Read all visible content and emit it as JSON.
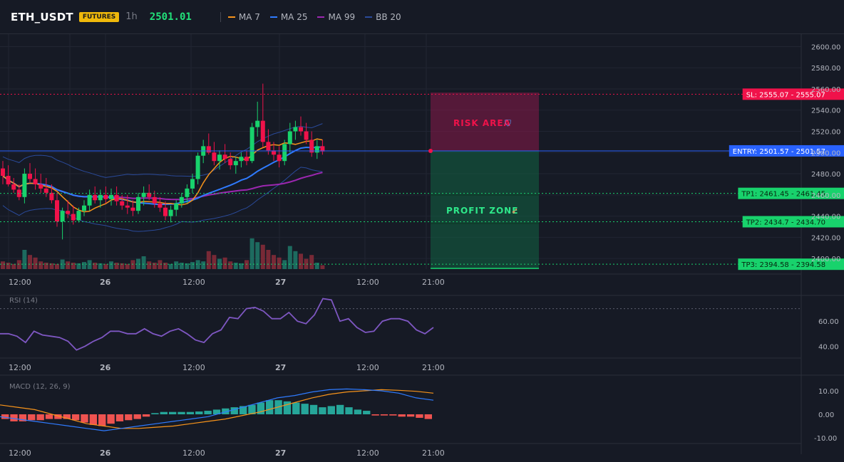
{
  "header": {
    "symbol": "ETH_USDT",
    "badge": "FUTURES",
    "timeframe": "1h",
    "last_price": "2501.01",
    "indicators": [
      {
        "label": "MA 7",
        "color": "#f7931a"
      },
      {
        "label": "MA 25",
        "color": "#2f7bff"
      },
      {
        "label": "MA 99",
        "color": "#9c27b0"
      },
      {
        "label": "BB 20",
        "color": "#2a4a9a"
      }
    ]
  },
  "main_panel": {
    "price_ticks": [
      "2600.00",
      "2580.00",
      "2560.00",
      "2540.00",
      "2520.00",
      "2500.00",
      "2480.00",
      "2460.00",
      "2440.00",
      "2420.00",
      "2400.00"
    ],
    "time_ticks": [
      "12:00",
      "26",
      "12:00",
      "27",
      "12:00",
      "21:00"
    ],
    "zones": {
      "risk_label": "RISK AREA",
      "profit_label": "PROFIT ZONE"
    },
    "levels": [
      {
        "label": "SL: 2555.07",
        "price": "2555.07",
        "color": "#f0124a"
      },
      {
        "label": "ENTRY: 2501.57",
        "price": "2501.57",
        "color": "#2962ff"
      },
      {
        "label": "TP1: 2461.45",
        "price": "2461.45",
        "color": "#18d26c"
      },
      {
        "label": "TP2: 2434.7",
        "price": "2434.70",
        "color": "#18d26c"
      },
      {
        "label": "TP3: 2394.58",
        "price": "2394.58",
        "color": "#18d26c"
      }
    ]
  },
  "rsi_panel": {
    "title": "RSI (14)",
    "ticks": [
      "60.00",
      "40.00"
    ],
    "time_ticks": [
      "12:00",
      "26",
      "12:00",
      "27",
      "12:00",
      "21:00"
    ]
  },
  "macd_panel": {
    "title": "MACD (12, 26, 9)",
    "ticks": [
      "10.00",
      "0.00",
      "-10.00"
    ],
    "time_ticks": [
      "12:00",
      "26",
      "12:00",
      "27",
      "12:00",
      "21:00"
    ]
  },
  "chart_data": {
    "type": "candlestick",
    "y_range": [
      2390,
      2605
    ],
    "candles": [
      [
        2485,
        2492,
        2470,
        2478
      ],
      [
        2478,
        2488,
        2468,
        2470
      ],
      [
        2470,
        2476,
        2462,
        2465
      ],
      [
        2465,
        2470,
        2455,
        2458
      ],
      [
        2458,
        2485,
        2452,
        2480
      ],
      [
        2480,
        2490,
        2472,
        2475
      ],
      [
        2475,
        2485,
        2465,
        2470
      ],
      [
        2470,
        2480,
        2462,
        2466
      ],
      [
        2466,
        2476,
        2458,
        2462
      ],
      [
        2462,
        2470,
        2452,
        2455
      ],
      [
        2455,
        2462,
        2430,
        2435
      ],
      [
        2435,
        2448,
        2418,
        2445
      ],
      [
        2445,
        2455,
        2438,
        2442
      ],
      [
        2442,
        2450,
        2432,
        2436
      ],
      [
        2436,
        2448,
        2434,
        2445
      ],
      [
        2445,
        2455,
        2440,
        2450
      ],
      [
        2450,
        2465,
        2445,
        2460
      ],
      [
        2460,
        2468,
        2452,
        2455
      ],
      [
        2455,
        2465,
        2448,
        2460
      ],
      [
        2460,
        2468,
        2452,
        2456
      ],
      [
        2456,
        2466,
        2450,
        2460
      ],
      [
        2460,
        2468,
        2450,
        2454
      ],
      [
        2454,
        2460,
        2446,
        2450
      ],
      [
        2450,
        2460,
        2442,
        2448
      ],
      [
        2448,
        2455,
        2440,
        2445
      ],
      [
        2445,
        2462,
        2442,
        2458
      ],
      [
        2458,
        2468,
        2450,
        2462
      ],
      [
        2462,
        2470,
        2455,
        2458
      ],
      [
        2458,
        2464,
        2448,
        2452
      ],
      [
        2452,
        2458,
        2444,
        2448
      ],
      [
        2448,
        2454,
        2436,
        2440
      ],
      [
        2440,
        2450,
        2434,
        2446
      ],
      [
        2446,
        2455,
        2440,
        2452
      ],
      [
        2452,
        2462,
        2448,
        2458
      ],
      [
        2458,
        2470,
        2452,
        2466
      ],
      [
        2466,
        2480,
        2462,
        2475
      ],
      [
        2475,
        2500,
        2470,
        2497
      ],
      [
        2497,
        2512,
        2490,
        2506
      ],
      [
        2506,
        2518,
        2498,
        2500
      ],
      [
        2500,
        2510,
        2488,
        2492
      ],
      [
        2492,
        2502,
        2484,
        2498
      ],
      [
        2498,
        2508,
        2490,
        2494
      ],
      [
        2494,
        2500,
        2484,
        2488
      ],
      [
        2488,
        2496,
        2480,
        2492
      ],
      [
        2492,
        2500,
        2486,
        2496
      ],
      [
        2496,
        2502,
        2488,
        2492
      ],
      [
        2492,
        2528,
        2490,
        2524
      ],
      [
        2524,
        2548,
        2515,
        2530
      ],
      [
        2530,
        2565,
        2505,
        2510
      ],
      [
        2510,
        2522,
        2498,
        2502
      ],
      [
        2502,
        2510,
        2492,
        2498
      ],
      [
        2498,
        2506,
        2486,
        2492
      ],
      [
        2492,
        2512,
        2488,
        2508
      ],
      [
        2508,
        2528,
        2500,
        2520
      ],
      [
        2520,
        2530,
        2512,
        2524
      ],
      [
        2524,
        2534,
        2516,
        2520
      ],
      [
        2520,
        2528,
        2508,
        2512
      ],
      [
        2512,
        2520,
        2496,
        2500
      ],
      [
        2500,
        2512,
        2494,
        2506
      ],
      [
        2506,
        2512,
        2498,
        2501
      ]
    ],
    "volumes": [
      12,
      10,
      8,
      14,
      30,
      22,
      18,
      12,
      10,
      9,
      8,
      15,
      12,
      10,
      9,
      11,
      14,
      10,
      9,
      8,
      12,
      10,
      9,
      8,
      14,
      16,
      20,
      12,
      10,
      14,
      10,
      8,
      12,
      10,
      9,
      11,
      14,
      12,
      28,
      22,
      16,
      18,
      12,
      10,
      9,
      14,
      48,
      42,
      38,
      30,
      22,
      18,
      14,
      36,
      28,
      24,
      16,
      22,
      10,
      6
    ],
    "rsi": [
      50,
      50,
      48,
      43,
      52,
      49,
      48,
      47,
      44,
      37,
      40,
      44,
      47,
      52,
      52,
      50,
      50,
      54,
      50,
      48,
      52,
      54,
      50,
      45,
      43,
      50,
      53,
      63,
      62,
      70,
      71,
      68,
      62,
      62,
      67,
      60,
      58,
      65,
      78,
      77,
      60,
      62,
      55,
      51,
      52,
      60,
      62,
      62,
      60,
      53,
      50,
      55
    ],
    "macd_hist": [
      -2,
      -3,
      -3,
      -2.5,
      -2.5,
      -2,
      -2,
      -2,
      -2.5,
      -3.5,
      -4.5,
      -5,
      -4,
      -3,
      -2.5,
      -2,
      -1,
      0.5,
      1,
      1,
      1,
      1,
      1.2,
      1.5,
      2,
      2.5,
      3,
      3.5,
      4,
      5,
      6,
      6,
      5.5,
      5,
      4.5,
      4,
      3,
      3.5,
      4,
      3,
      2,
      1.5,
      -0.5,
      -0.5,
      -0.5,
      -1,
      -1,
      -1.5,
      -2
    ],
    "macd_line": [
      -1,
      -2,
      -3,
      -4,
      -5,
      -6,
      -7,
      -6,
      -5,
      -4,
      -3,
      -2,
      -1,
      1,
      3,
      5,
      7,
      8,
      9.5,
      10.5,
      10.8,
      10.5,
      10,
      9,
      7,
      6
    ],
    "signal_line": [
      4,
      3,
      2,
      0,
      -2,
      -4,
      -5,
      -6,
      -6,
      -5.5,
      -5,
      -4,
      -3,
      -2,
      -0.5,
      1,
      3,
      5,
      7,
      8.5,
      9.5,
      10,
      10.5,
      10.2,
      9.8,
      9
    ]
  }
}
